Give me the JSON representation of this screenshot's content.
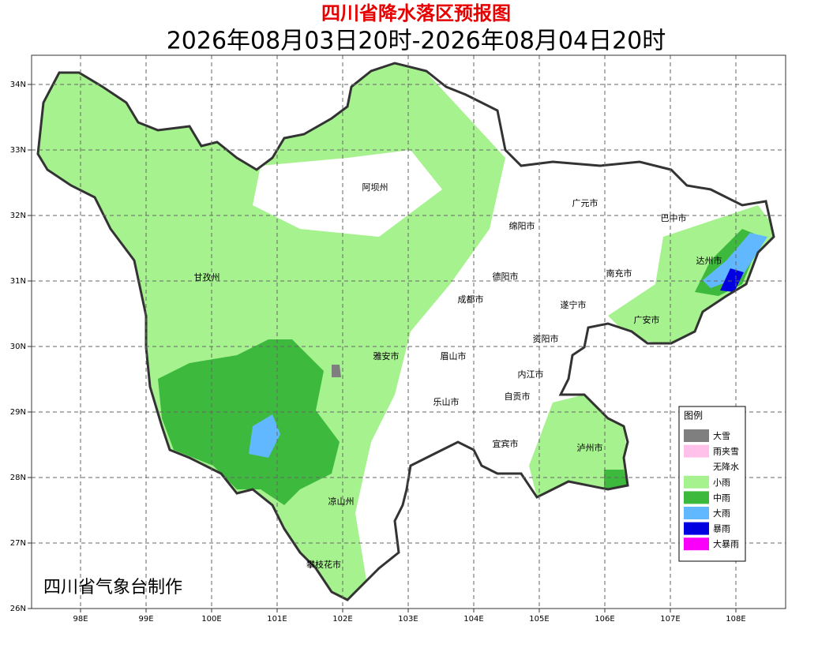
{
  "header": {
    "title": "四川省降水落区预报图",
    "subtitle": "2026年08月03日20时-2026年08月04日20时"
  },
  "map": {
    "x_labels": [
      "98E",
      "99E",
      "100E",
      "101E",
      "102E",
      "103E",
      "104E",
      "105E",
      "106E",
      "107E",
      "108E"
    ],
    "y_labels": [
      "34N",
      "33N",
      "32N",
      "31N",
      "30N",
      "29N",
      "28N",
      "27N",
      "26N"
    ],
    "cities": [
      {
        "label": "阿坝州"
      },
      {
        "label": "广元市"
      },
      {
        "label": "巴中市"
      },
      {
        "label": "绵阳市"
      },
      {
        "label": "甘孜州"
      },
      {
        "label": "德阳市"
      },
      {
        "label": "达州市"
      },
      {
        "label": "南充市"
      },
      {
        "label": "成都市"
      },
      {
        "label": "遂宁市"
      },
      {
        "label": "广安市"
      },
      {
        "label": "资阳市"
      },
      {
        "label": "雅安市"
      },
      {
        "label": "眉山市"
      },
      {
        "label": "内江市"
      },
      {
        "label": "自贡市"
      },
      {
        "label": "乐山市"
      },
      {
        "label": "宜宾市"
      },
      {
        "label": "泸州市"
      },
      {
        "label": "凉山州"
      },
      {
        "label": "攀枝花市"
      }
    ],
    "credit": "四川省气象台制作"
  },
  "legend": {
    "title": "图例",
    "items": [
      {
        "label": "大雪",
        "color": "#7f7f7f"
      },
      {
        "label": "雨夹雪",
        "color": "#ffc0ea"
      },
      {
        "label": "无降水",
        "color": "#ffffff"
      },
      {
        "label": "小雨",
        "color": "#a6f28f"
      },
      {
        "label": "中雨",
        "color": "#3dba3d"
      },
      {
        "label": "大雨",
        "color": "#61b8ff"
      },
      {
        "label": "暴雨",
        "color": "#0000e1"
      },
      {
        "label": "大暴雨",
        "color": "#fa00fa"
      }
    ]
  }
}
